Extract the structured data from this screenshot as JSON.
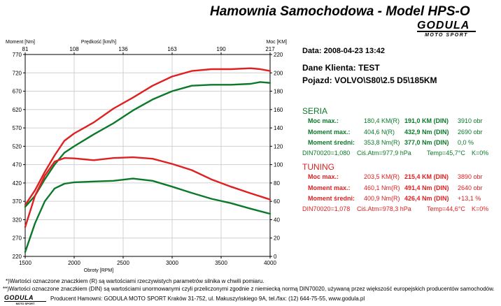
{
  "header": {
    "title": "Hamownia Samochodowa   -   Model HPS-O",
    "logo_main": "GODULA",
    "logo_sub": "MOTO SPORT"
  },
  "info": {
    "date_label": "Data:",
    "date_value": "2008-04-23  13:42",
    "client_label": "Dane Klienta:",
    "client_value": "TEST",
    "vehicle_label": "Pojazd:",
    "vehicle_value": "VOLVO\\S80\\2.5 D5\\185KM"
  },
  "seria": {
    "title": "SERIA",
    "rows": [
      {
        "label": "Moc max.:",
        "r": "180,4 KM(R)",
        "din": "191,0 KM (DIN)",
        "extra": "3910 obr"
      },
      {
        "label": "Moment max.:",
        "r": "404,6 N(R)",
        "din": "432,9 Nm (DIN)",
        "extra": "2690 obr"
      },
      {
        "label": "Moment średni:",
        "r": "353,8 Nm(R)",
        "din": "377,0 Nm (DIN)",
        "extra": "0,0 %"
      }
    ],
    "cond": {
      "din": "DIN70020=1,080",
      "atm": "Ciś.Atm=977,9 hPa",
      "temp": "Temp=45,7°C",
      "k": "K=0%"
    }
  },
  "tuning": {
    "title": "TUNING",
    "rows": [
      {
        "label": "Moc max.:",
        "r": "203,5 KM(R)",
        "din": "215,4 KM (DIN)",
        "extra": "3890 obr"
      },
      {
        "label": "Moment max.:",
        "r": "460,1 Nm(R)",
        "din": "491,4 Nm (DIN)",
        "extra": "2640 obr"
      },
      {
        "label": "Moment średni:",
        "r": "400,9 Nm(R)",
        "din": "426,4 Nm (DIN)",
        "extra": "+13,1 %"
      }
    ],
    "cond": {
      "din": "DIN70020=1,078",
      "atm": "Ciś.Atm=978,3 hPa",
      "temp": "Temp=44,6°C",
      "k": "K=0%"
    }
  },
  "footer": {
    "note1": "*)Wartości oznaczone znaczkiem (R) są wartościami rzeczywistych parametrów silnika w chwili pomiaru.",
    "note2": "**)Wartości oznaczone znaczkiem (DIN) są wartościami unormowanymi czyli przeliczonymi zgodnie z niemiecką normą DIN70020, używaną przez większość europejskich producentów samochodów.",
    "producer": "Producent Hamowni: GODULA MOTO SPORT Kraków 31-752, ul. Makuszyńskiego 9A, tel./fax: (12) 644-75-55, www.godula.pl",
    "logo_main": "GODULA",
    "logo_sub": "MOTO SPORT"
  },
  "chart_data": {
    "type": "line",
    "xlabel": "Obroty [RPM]",
    "x2label": "Prędkość [km/h]",
    "ylabel_left": "Moment [Nm]",
    "ylabel_right": "Moc [KM]",
    "xlim": [
      1500,
      4000
    ],
    "x_ticks": [
      1500,
      2000,
      2500,
      3000,
      3500,
      4000
    ],
    "x2_ticks": [
      "81",
      "108",
      "136",
      "163",
      "190",
      "217"
    ],
    "y_left_lim": [
      220,
      770
    ],
    "y_left_ticks": [
      220,
      270,
      320,
      370,
      420,
      470,
      520,
      570,
      620,
      670,
      720,
      770
    ],
    "y_right_lim": [
      0,
      220
    ],
    "y_right_ticks": [
      0,
      20,
      40,
      60,
      80,
      100,
      120,
      140,
      160,
      180,
      200,
      220
    ],
    "grid": true,
    "series": [
      {
        "color": "#e02020",
        "axis": "right",
        "measure": "power",
        "x": [
          1500,
          1600,
          1700,
          1800,
          1900,
          2000,
          2200,
          2400,
          2600,
          2800,
          3000,
          3200,
          3400,
          3600,
          3800,
          3900,
          4000
        ],
        "y": [
          56,
          72,
          92,
          110,
          126,
          134,
          146,
          161,
          173,
          186,
          196,
          202,
          204,
          204,
          205,
          204,
          202
        ]
      },
      {
        "color": "#0a7a2a",
        "axis": "right",
        "measure": "power",
        "x": [
          1500,
          1600,
          1700,
          1800,
          1900,
          2000,
          2200,
          2400,
          2600,
          2800,
          3000,
          3200,
          3400,
          3600,
          3800,
          3900,
          4000
        ],
        "y": [
          54,
          66,
          84,
          100,
          113,
          120,
          133,
          145,
          159,
          171,
          180,
          186,
          187,
          187,
          188,
          190,
          189
        ]
      },
      {
        "color": "#e02020",
        "axis": "left",
        "measure": "torque",
        "x": [
          1500,
          1600,
          1700,
          1800,
          1900,
          2000,
          2200,
          2400,
          2600,
          2800,
          3000,
          3200,
          3400,
          3600,
          3800,
          4000
        ],
        "y": [
          300,
          385,
          440,
          478,
          488,
          487,
          482,
          488,
          490,
          486,
          472,
          455,
          430,
          410,
          392,
          375
        ]
      },
      {
        "color": "#0a7a2a",
        "axis": "left",
        "measure": "torque",
        "x": [
          1500,
          1600,
          1700,
          1800,
          1900,
          2000,
          2200,
          2400,
          2600,
          2800,
          3000,
          3200,
          3400,
          3600,
          3800,
          4000
        ],
        "y": [
          232,
          310,
          370,
          405,
          418,
          422,
          424,
          426,
          432,
          426,
          410,
          393,
          377,
          365,
          350,
          336
        ]
      }
    ]
  }
}
